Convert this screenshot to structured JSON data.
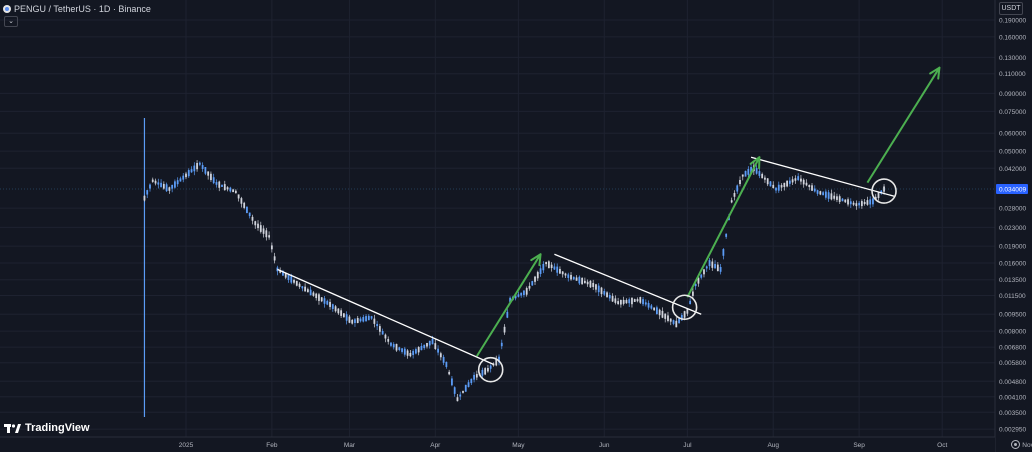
{
  "header": {
    "symbol": "PENGU",
    "quote": "TetherUS",
    "timeframe": "1D",
    "exchange": "Binance",
    "title": "PENGU / TetherUS · 1D · Binance"
  },
  "currency_button": "USDT",
  "logo_text": "TradingView",
  "colors": {
    "background": "#131722",
    "grid": "#1e2230",
    "up_candle": "#5b9cf6",
    "down_candle": "#d1d4dc",
    "trendline": "#ffffff",
    "arrow": "#4caf50",
    "price_label": "#2962ff"
  },
  "icons": [
    "coin-icon",
    "collapse-chevron-icon",
    "tradingview-logo-icon",
    "settings-gear-icon"
  ],
  "chart_data": {
    "type": "candlestick",
    "scale": "log",
    "grid": true,
    "x_ticks": [
      "2025",
      "Feb",
      "Mar",
      "Apr",
      "May",
      "Jun",
      "Jul",
      "Aug",
      "Sep",
      "Oct",
      "Nov"
    ],
    "y_ticks": [
      "0.190000",
      "0.160000",
      "0.130000",
      "0.110000",
      "0.090000",
      "0.075000",
      "0.060000",
      "0.050000",
      "0.042000",
      "0.034009",
      "0.028000",
      "0.023000",
      "0.019000",
      "0.016000",
      "0.013500",
      "0.011500",
      "0.009500",
      "0.008000",
      "0.006800",
      "0.005800",
      "0.004800",
      "0.004100",
      "0.003500",
      "0.002950"
    ],
    "y_tick_values": [
      0.19,
      0.16,
      0.13,
      0.11,
      0.09,
      0.075,
      0.06,
      0.05,
      0.042,
      0.034009,
      0.028,
      0.023,
      0.019,
      0.016,
      0.0135,
      0.0115,
      0.0095,
      0.008,
      0.0068,
      0.0058,
      0.0048,
      0.0041,
      0.0035,
      0.00295
    ],
    "current_price": "0.034009",
    "current_price_value": 0.034009,
    "price_path": [
      [
        "2024-12-17",
        0.031
      ],
      [
        "2024-12-20",
        0.037
      ],
      [
        "2024-12-26",
        0.034
      ],
      [
        "2025-01-02",
        0.04
      ],
      [
        "2025-01-06",
        0.044
      ],
      [
        "2025-01-12",
        0.036
      ],
      [
        "2025-01-19",
        0.033
      ],
      [
        "2025-01-26",
        0.024
      ],
      [
        "2025-01-31",
        0.021
      ],
      [
        "2025-02-03",
        0.015
      ],
      [
        "2025-02-12",
        0.0125
      ],
      [
        "2025-02-22",
        0.0105
      ],
      [
        "2025-03-02",
        0.0088
      ],
      [
        "2025-03-09",
        0.0092
      ],
      [
        "2025-03-16",
        0.007
      ],
      [
        "2025-03-23",
        0.0063
      ],
      [
        "2025-03-31",
        0.0072
      ],
      [
        "2025-04-05",
        0.0057
      ],
      [
        "2025-04-09",
        0.004
      ],
      [
        "2025-04-15",
        0.005
      ],
      [
        "2025-04-20",
        0.0054
      ],
      [
        "2025-04-24",
        0.006
      ],
      [
        "2025-04-28",
        0.011
      ],
      [
        "2025-05-04",
        0.012
      ],
      [
        "2025-05-11",
        0.016
      ],
      [
        "2025-05-19",
        0.014
      ],
      [
        "2025-05-28",
        0.0128
      ],
      [
        "2025-06-06",
        0.0107
      ],
      [
        "2025-06-14",
        0.011
      ],
      [
        "2025-06-22",
        0.0095
      ],
      [
        "2025-06-27",
        0.0086
      ],
      [
        "2025-07-01",
        0.0098
      ],
      [
        "2025-07-04",
        0.0128
      ],
      [
        "2025-07-09",
        0.016
      ],
      [
        "2025-07-13",
        0.015
      ],
      [
        "2025-07-17",
        0.03
      ],
      [
        "2025-07-21",
        0.039
      ],
      [
        "2025-07-25",
        0.042
      ],
      [
        "2025-08-02",
        0.034
      ],
      [
        "2025-08-10",
        0.038
      ],
      [
        "2025-08-17",
        0.033
      ],
      [
        "2025-08-24",
        0.031
      ],
      [
        "2025-08-31",
        0.029
      ],
      [
        "2025-09-06",
        0.03
      ],
      [
        "2025-09-10",
        0.034
      ]
    ],
    "trendlines": [
      {
        "from": [
          "2025-02-03",
          0.015
        ],
        "to": [
          "2025-04-22",
          0.0057
        ]
      },
      {
        "from": [
          "2025-05-14",
          0.0175
        ],
        "to": [
          "2025-07-06",
          0.0095
        ]
      },
      {
        "from": [
          "2025-07-24",
          0.047
        ],
        "to": [
          "2025-09-14",
          0.0315
        ]
      }
    ],
    "arrows": [
      {
        "from": [
          "2025-04-16",
          0.0062
        ],
        "to": [
          "2025-05-09",
          0.0175
        ]
      },
      {
        "from": [
          "2025-07-01",
          0.0113
        ],
        "to": [
          "2025-07-27",
          0.047
        ]
      },
      {
        "from": [
          "2025-09-04",
          0.0363
        ],
        "to": [
          "2025-09-30",
          0.117
        ]
      }
    ],
    "circles": [
      {
        "center": [
          "2025-04-21",
          0.0054
        ]
      },
      {
        "center": [
          "2025-06-30",
          0.0102
        ]
      },
      {
        "center": [
          "2025-09-10",
          0.0333
        ]
      }
    ]
  }
}
